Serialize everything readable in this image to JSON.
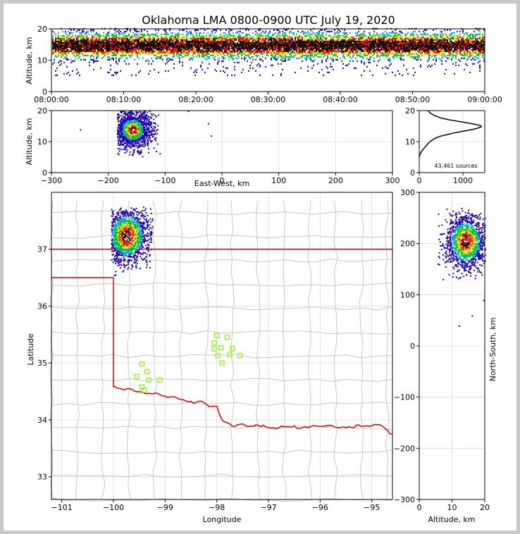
{
  "chart_data": [
    {
      "panel": "altitude-vs-time",
      "type": "heatmap",
      "title": "Oklahoma LMA 0800-0900 UTC July 19, 2020",
      "xlabel": "",
      "ylabel": "Altitude, km",
      "xlim": [
        "08:00:00",
        "09:00:00"
      ],
      "ylim": [
        0,
        20
      ],
      "xticks": [
        "08:00:00",
        "08:10:00",
        "08:20:00",
        "08:30:00",
        "08:40:00",
        "08:50:00",
        "09:00:00"
      ],
      "yticks": [
        "0",
        "10",
        "20"
      ],
      "density_band_km": [
        5,
        20
      ],
      "peak_density_altitude_km": [
        12,
        17
      ]
    },
    {
      "panel": "altitude-vs-east-west",
      "type": "heatmap",
      "xlabel": "East-West, km",
      "ylabel": "Altitude, km",
      "xlim": [
        -300,
        300
      ],
      "ylim": [
        0,
        20
      ],
      "xticks": [
        "−300",
        "−200",
        "−100",
        "0",
        "100",
        "200",
        "300"
      ],
      "yticks": [
        "0",
        "10",
        "20"
      ],
      "cluster": {
        "x_km": [
          -185,
          -105
        ],
        "alt_km": [
          5,
          20
        ],
        "core_x_km": -158,
        "core_alt_km": 14
      }
    },
    {
      "panel": "altitude-histogram",
      "type": "line",
      "xlabel": "",
      "ylabel": "",
      "xlim": [
        0,
        1500
      ],
      "ylim": [
        0,
        20
      ],
      "xticks": [
        "0",
        "1000"
      ],
      "yticks": [
        "0",
        "10",
        "20"
      ],
      "annotation": "43,461 sources",
      "x": [
        0,
        20,
        60,
        120,
        180,
        230,
        300,
        380,
        500,
        650,
        800,
        950,
        1100,
        1250,
        1350,
        1420,
        1400,
        1200,
        950,
        700,
        500,
        350,
        250,
        200
      ],
      "y": [
        5,
        6,
        7,
        8,
        9,
        9.8,
        10.5,
        11.2,
        11.8,
        12.3,
        12.8,
        13.2,
        13.6,
        14,
        14.4,
        14.8,
        15.2,
        15.8,
        16.4,
        17,
        17.6,
        18.4,
        19.2,
        20
      ]
    },
    {
      "panel": "plan-view-map",
      "type": "scatter",
      "xlabel": "Longitude",
      "ylabel": "Latitude",
      "xlim": [
        -101.2,
        -94.6
      ],
      "ylim": [
        32.6,
        38.0
      ],
      "xticks": [
        "−101",
        "−100",
        "−99",
        "−98",
        "−97",
        "−96",
        "−95"
      ],
      "yticks": [
        "33",
        "34",
        "35",
        "36",
        "37"
      ],
      "cluster": {
        "lon": [
          -100.05,
          -99.25
        ],
        "lat": [
          36.55,
          37.75
        ],
        "core_lon": -99.75,
        "core_lat": 37.25
      },
      "stations": [
        {
          "lon": -99.45,
          "lat": 34.98
        },
        {
          "lon": -99.35,
          "lat": 34.85
        },
        {
          "lon": -99.55,
          "lat": 34.76
        },
        {
          "lon": -99.32,
          "lat": 34.7
        },
        {
          "lon": -99.45,
          "lat": 34.58
        },
        {
          "lon": -99.4,
          "lat": 34.52
        },
        {
          "lon": -99.1,
          "lat": 34.7
        },
        {
          "lon": -98.0,
          "lat": 35.48
        },
        {
          "lon": -97.8,
          "lat": 35.45
        },
        {
          "lon": -98.05,
          "lat": 35.35
        },
        {
          "lon": -98.05,
          "lat": 35.25
        },
        {
          "lon": -97.92,
          "lat": 35.27
        },
        {
          "lon": -97.7,
          "lat": 35.25
        },
        {
          "lon": -97.98,
          "lat": 35.13
        },
        {
          "lon": -97.75,
          "lat": 35.15
        },
        {
          "lon": -97.55,
          "lat": 35.13
        },
        {
          "lon": -97.9,
          "lat": 35.0
        }
      ],
      "station_color": "#7cfc00",
      "state_border_color": "#dd0000",
      "county_line_color": "#c8c8c8"
    },
    {
      "panel": "north-south-vs-altitude",
      "type": "heatmap",
      "xlabel": "Altitude, km",
      "ylabel": "North-South, km",
      "xlim": [
        0,
        20
      ],
      "ylim": [
        -300,
        300
      ],
      "xticks": [
        "0",
        "10",
        "20"
      ],
      "yticks": [
        "−300",
        "−200",
        "−100",
        "0",
        "100",
        "200",
        "300"
      ],
      "cluster": {
        "alt_km": [
          5,
          20
        ],
        "ns_km": [
          130,
          270
        ],
        "core_alt_km": 14,
        "core_ns_km": 205
      }
    }
  ],
  "colors": {
    "density_scale": [
      "#1e00b4",
      "#00b4c8",
      "#00c800",
      "#ffd200",
      "#ff0000",
      "#000000",
      "#ffffff"
    ],
    "grid": "#dcdcdc",
    "histogram_line": "#000000"
  }
}
